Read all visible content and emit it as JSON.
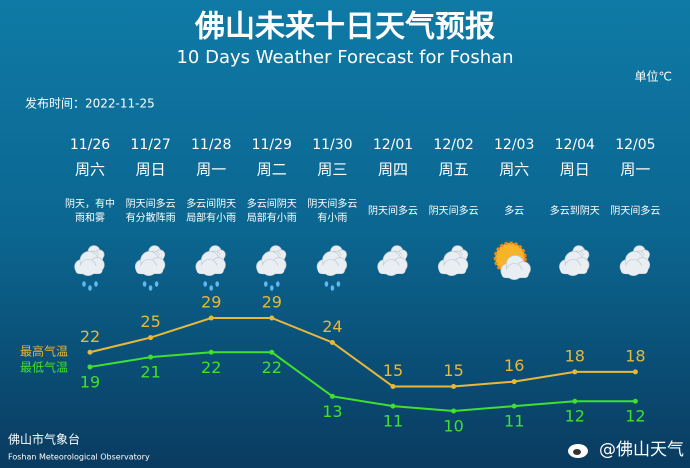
{
  "chart_data": {
    "type": "line",
    "title": "佛山未来十日天气预报",
    "subtitle": "10 Days Weather Forecast for Foshan",
    "unit": "单位℃",
    "issued": "发布时间：2022-11-25",
    "categories": [
      "11/26",
      "11/27",
      "11/28",
      "11/29",
      "11/30",
      "12/01",
      "12/02",
      "12/03",
      "12/04",
      "12/05"
    ],
    "weekdays": [
      "周六",
      "周日",
      "周一",
      "周二",
      "周三",
      "周四",
      "周五",
      "周六",
      "周日",
      "周一"
    ],
    "conditions": [
      [
        "阴天，有中",
        "雨和雾"
      ],
      [
        "阴天间多云",
        "有分散阵雨"
      ],
      [
        "多云间阴天",
        "局部有小雨"
      ],
      [
        "多云间阴天",
        "局部有小雨"
      ],
      [
        "阴天间多云",
        "有小雨"
      ],
      [
        "阴天间多云"
      ],
      [
        "阴天间多云"
      ],
      [
        "多云"
      ],
      [
        "多云到阴天"
      ],
      [
        "阴天间多云"
      ]
    ],
    "series": [
      {
        "name": "最高气温",
        "color": "#e8b83a",
        "values": [
          22,
          25,
          29,
          29,
          24,
          15,
          15,
          16,
          18,
          18
        ]
      },
      {
        "name": "最低气温",
        "color": "#3fe02e",
        "values": [
          19,
          21,
          22,
          22,
          13,
          11,
          10,
          11,
          12,
          12
        ]
      }
    ],
    "footer": "佛山市气象台",
    "footer_en": "Foshan Meteorological Observatory",
    "watermark": "@佛山天气"
  }
}
